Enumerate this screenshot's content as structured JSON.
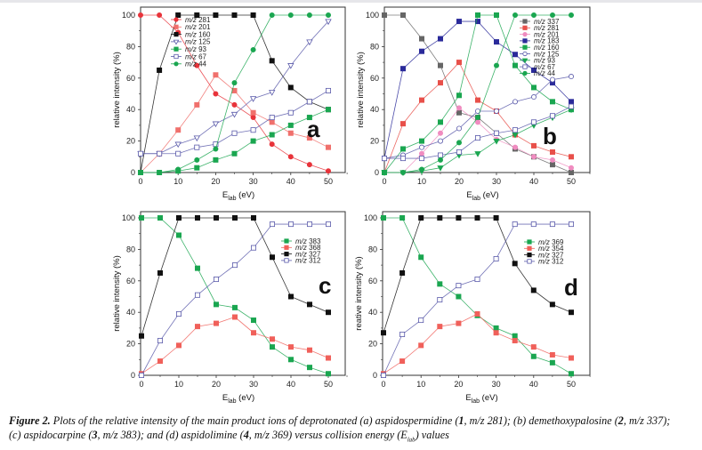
{
  "chart_data": [
    {
      "id": "a",
      "type": "line",
      "panel_letter": "a",
      "xlabel_main": "E",
      "xlabel_sub": "lab",
      "xlabel_unit": " (eV)",
      "ylabel": "relative intensity (%)",
      "xlim": [
        0,
        55
      ],
      "ylim": [
        0,
        105
      ],
      "xticks": [
        0,
        10,
        20,
        30,
        40,
        50
      ],
      "yticks": [
        0,
        20,
        40,
        60,
        80,
        100
      ],
      "x": [
        0,
        5,
        10,
        15,
        20,
        25,
        30,
        35,
        40,
        45,
        50
      ],
      "legend_position": "top-center",
      "series": [
        {
          "name": "m/z 281",
          "color": "#e8333a",
          "marker": "circle",
          "values": [
            100,
            100,
            89,
            68,
            50,
            43,
            35,
            18,
            10,
            5,
            1
          ]
        },
        {
          "name": "m/z 201",
          "color": "#f0706c",
          "marker": "square",
          "values": [
            0,
            12,
            27,
            43,
            62,
            52,
            38,
            32,
            25,
            22,
            16
          ]
        },
        {
          "name": "m/z 160",
          "color": "#111111",
          "marker": "square",
          "values": [
            0,
            65,
            100,
            100,
            100,
            100,
            100,
            71,
            54,
            45,
            40
          ]
        },
        {
          "name": "m/z 125",
          "color": "#5a5aaa",
          "marker": "triangle-down-open",
          "values": [
            12,
            12,
            18,
            22,
            31,
            37,
            47,
            51,
            68,
            83,
            96
          ]
        },
        {
          "name": "m/z 93",
          "color": "#1aa650",
          "marker": "square",
          "values": [
            0,
            0,
            1,
            3,
            8,
            12,
            20,
            24,
            30,
            35,
            40
          ]
        },
        {
          "name": "m/z 67",
          "color": "#5a5aaa",
          "marker": "square-open",
          "values": [
            12,
            12,
            12,
            16,
            18,
            25,
            27,
            35,
            38,
            45,
            52
          ]
        },
        {
          "name": "m/z 44",
          "color": "#1aa650",
          "marker": "circle",
          "values": [
            0,
            0,
            2,
            8,
            15,
            57,
            78,
            100,
            100,
            100,
            100
          ]
        }
      ]
    },
    {
      "id": "b",
      "type": "line",
      "panel_letter": "b",
      "xlabel_main": "E",
      "xlabel_sub": "lab",
      "xlabel_unit": " (eV)",
      "ylabel": "relative intensity (%)",
      "xlim": [
        0,
        55
      ],
      "ylim": [
        0,
        105
      ],
      "xticks": [
        0,
        10,
        20,
        30,
        40,
        50
      ],
      "yticks": [
        0,
        20,
        40,
        60,
        80,
        100
      ],
      "x": [
        0,
        5,
        10,
        15,
        20,
        25,
        30,
        35,
        40,
        45,
        50
      ],
      "legend_position": "top-right",
      "series": [
        {
          "name": "m/z 337",
          "color": "#666666",
          "marker": "square",
          "values": [
            100,
            100,
            85,
            68,
            38,
            35,
            25,
            15,
            10,
            5,
            0
          ]
        },
        {
          "name": "m/z 281",
          "color": "#e8504a",
          "marker": "square",
          "values": [
            0,
            31,
            46,
            57,
            70,
            46,
            39,
            24,
            17,
            13,
            10
          ]
        },
        {
          "name": "m/z 201",
          "color": "#f08cc0",
          "marker": "circle",
          "values": [
            0,
            0,
            12,
            25,
            41,
            32,
            21,
            16,
            10,
            8,
            3
          ]
        },
        {
          "name": "m/z 183",
          "color": "#2a2a9a",
          "marker": "square",
          "values": [
            9,
            66,
            77,
            85,
            96,
            96,
            83,
            75,
            65,
            57,
            45
          ]
        },
        {
          "name": "m/z 160",
          "color": "#1aa650",
          "marker": "square",
          "values": [
            0,
            15,
            20,
            32,
            49,
            100,
            100,
            68,
            54,
            45,
            40
          ]
        },
        {
          "name": "m/z 125",
          "color": "#5a5aaa",
          "marker": "circle-open",
          "values": [
            9,
            11,
            16,
            20,
            28,
            39,
            39,
            45,
            48,
            59,
            61
          ]
        },
        {
          "name": "m/z 93",
          "color": "#1aa650",
          "marker": "triangle-down",
          "values": [
            0,
            0,
            1,
            3,
            11,
            12,
            20,
            24,
            30,
            35,
            40
          ]
        },
        {
          "name": "m/z 67",
          "color": "#5a5aaa",
          "marker": "square-open",
          "values": [
            9,
            9,
            9,
            11,
            13,
            22,
            25,
            27,
            32,
            36,
            42
          ]
        },
        {
          "name": "m/z 44",
          "color": "#1aa650",
          "marker": "circle",
          "values": [
            0,
            0,
            2,
            8,
            19,
            35,
            68,
            100,
            100,
            100,
            100
          ]
        }
      ]
    },
    {
      "id": "c",
      "type": "line",
      "panel_letter": "c",
      "xlabel_main": "E",
      "xlabel_sub": "lab",
      "xlabel_unit": " (eV)",
      "ylabel": "relative intensity (%)",
      "xlim": [
        0,
        55
      ],
      "ylim": [
        0,
        103
      ],
      "xticks": [
        0,
        10,
        20,
        30,
        40,
        50
      ],
      "yticks": [
        0,
        20,
        40,
        60,
        80,
        100
      ],
      "x": [
        0,
        5,
        10,
        15,
        20,
        25,
        30,
        35,
        40,
        45,
        50
      ],
      "legend_position": "top-right",
      "series": [
        {
          "name": "m/z 383",
          "color": "#1aa650",
          "marker": "square",
          "values": [
            100,
            100,
            89,
            68,
            45,
            43,
            35,
            18,
            10,
            5,
            1
          ]
        },
        {
          "name": "m/z 368",
          "color": "#f0605a",
          "marker": "square",
          "values": [
            1,
            9,
            19,
            31,
            33,
            37,
            27,
            23,
            18,
            16,
            11
          ]
        },
        {
          "name": "m/z 327",
          "color": "#111111",
          "marker": "square",
          "values": [
            25,
            65,
            100,
            100,
            100,
            100,
            100,
            75,
            50,
            45,
            40
          ]
        },
        {
          "name": "m/z 312",
          "color": "#5a5aaa",
          "marker": "square-open",
          "values": [
            0,
            22,
            39,
            51,
            61,
            70,
            81,
            96,
            96,
            96,
            96
          ]
        }
      ]
    },
    {
      "id": "d",
      "type": "line",
      "panel_letter": "d",
      "xlabel_main": "E",
      "xlabel_sub": "lab",
      "xlabel_unit": " (eV)",
      "ylabel": "reative intensity (%)",
      "xlim": [
        0,
        55
      ],
      "ylim": [
        0,
        103
      ],
      "xticks": [
        0,
        10,
        20,
        30,
        40,
        50
      ],
      "yticks": [
        0,
        20,
        40,
        60,
        80,
        100
      ],
      "x": [
        0,
        5,
        10,
        15,
        20,
        25,
        30,
        35,
        40,
        45,
        50
      ],
      "legend_position": "top-right",
      "series": [
        {
          "name": "m/z 369",
          "color": "#1aa650",
          "marker": "square",
          "values": [
            100,
            100,
            75,
            58,
            50,
            38,
            30,
            25,
            12,
            8,
            1
          ]
        },
        {
          "name": "m/z 354",
          "color": "#f0605a",
          "marker": "square",
          "values": [
            1,
            9,
            19,
            31,
            33,
            39,
            27,
            22,
            18,
            13,
            11
          ]
        },
        {
          "name": "m/z 327",
          "color": "#111111",
          "marker": "square",
          "values": [
            27,
            65,
            100,
            100,
            100,
            100,
            100,
            71,
            54,
            45,
            40
          ]
        },
        {
          "name": "m/z 312",
          "color": "#5a5aaa",
          "marker": "square-open",
          "values": [
            0,
            26,
            35,
            48,
            57,
            61,
            74,
            96,
            96,
            96,
            96
          ]
        }
      ]
    }
  ],
  "caption": {
    "label": "Figure 2.",
    "line1_parts": [
      {
        "t": " Plots of the relative intensity of the main product ions of deprotonated (a) aspidospermidine (",
        "b": false
      },
      {
        "t": "1",
        "b": true
      },
      {
        "t": ", m/z 281); (b) demethoxypalosine (",
        "b": false
      },
      {
        "t": "2",
        "b": true
      },
      {
        "t": ", m/z 337);",
        "b": false
      }
    ],
    "line2_parts": [
      {
        "t": "(c) aspidocarpine (",
        "b": false
      },
      {
        "t": "3",
        "b": true
      },
      {
        "t": ", m/z 383); and (d) aspidolimine (",
        "b": false
      },
      {
        "t": "4",
        "b": true
      },
      {
        "t": ", m/z 369) versus collision energy (E",
        "b": false
      },
      {
        "t": "lab",
        "sub": true
      },
      {
        "t": ") values",
        "b": false
      }
    ]
  }
}
